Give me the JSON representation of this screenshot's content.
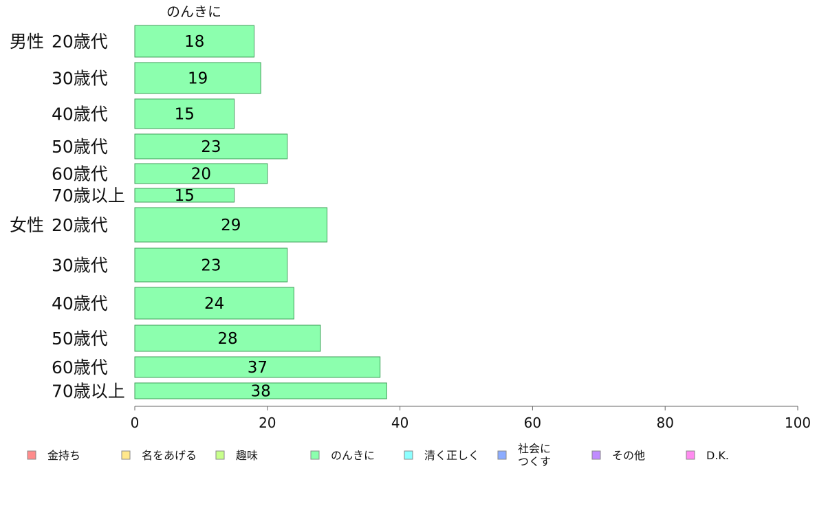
{
  "chart_data": {
    "type": "bar",
    "orientation": "horizontal",
    "series_title": "のんきに",
    "color": "#8cffae",
    "stroke": "#3f9f5a",
    "xlim": [
      0,
      100
    ],
    "xticks": [
      0,
      20,
      40,
      60,
      80,
      100
    ],
    "categories": [
      {
        "group": "男性",
        "age": "20歳代",
        "value": 18
      },
      {
        "group": "",
        "age": "30歳代",
        "value": 19
      },
      {
        "group": "",
        "age": "40歳代",
        "value": 15
      },
      {
        "group": "",
        "age": "50歳代",
        "value": 23
      },
      {
        "group": "",
        "age": "60歳代",
        "value": 20
      },
      {
        "group": "",
        "age": "70歳以上",
        "value": 15
      },
      {
        "group": "女性",
        "age": "20歳代",
        "value": 29
      },
      {
        "group": "",
        "age": "30歳代",
        "value": 23
      },
      {
        "group": "",
        "age": "40歳代",
        "value": 24
      },
      {
        "group": "",
        "age": "50歳代",
        "value": 28
      },
      {
        "group": "",
        "age": "60歳代",
        "value": 37
      },
      {
        "group": "",
        "age": "70歳以上",
        "value": 38
      }
    ],
    "legend": [
      {
        "label": "金持ち",
        "color": "#ff8c8c"
      },
      {
        "label": "名をあげる",
        "color": "#ffe88c"
      },
      {
        "label": "趣味",
        "color": "#c8ff8c"
      },
      {
        "label": "のんきに",
        "color": "#8cffae"
      },
      {
        "label": "清く正しく",
        "color": "#8cffff"
      },
      {
        "label": "社会に\nつくす",
        "color": "#8cacff"
      },
      {
        "label": "その他",
        "color": "#c08cff"
      },
      {
        "label": "D.K.",
        "color": "#ff8cf0"
      }
    ]
  }
}
